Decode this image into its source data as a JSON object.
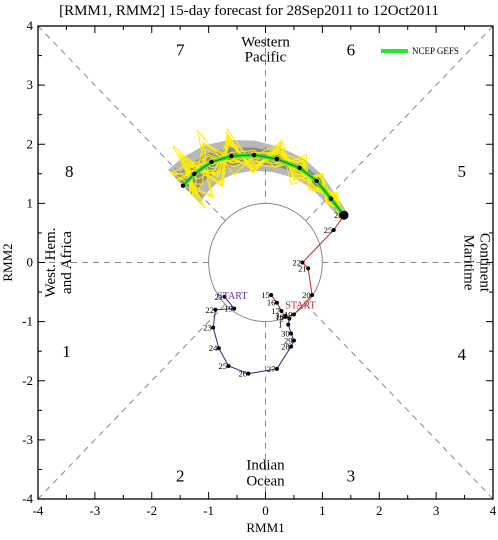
{
  "chart_data": {
    "type": "line",
    "title": "[RMM1, RMM2] 15-day forecast for 28Sep2011 to 12Oct2011",
    "xlabel": "RMM1",
    "ylabel": "RMM2",
    "xlim": [
      -4,
      4
    ],
    "ylim": [
      -4,
      4
    ],
    "xticks": [
      -4,
      -3,
      -2,
      -1,
      0,
      1,
      2,
      3,
      4
    ],
    "yticks": [
      -4,
      -3,
      -2,
      -1,
      0,
      1,
      2,
      3,
      4
    ],
    "phases": [
      {
        "label": "1",
        "x": -3.5,
        "y": -1.5
      },
      {
        "label": "2",
        "x": -1.5,
        "y": -3.6
      },
      {
        "label": "3",
        "x": 1.5,
        "y": -3.6
      },
      {
        "label": "4",
        "x": 3.45,
        "y": -1.55
      },
      {
        "label": "5",
        "x": 3.45,
        "y": 1.55
      },
      {
        "label": "6",
        "x": 1.5,
        "y": 3.6
      },
      {
        "label": "7",
        "x": -1.5,
        "y": 3.6
      },
      {
        "label": "8",
        "x": -3.45,
        "y": 1.55
      }
    ],
    "regions": {
      "top": [
        "Western",
        "Pacific"
      ],
      "bottom": [
        "Indian",
        "Ocean"
      ],
      "left": [
        "West. Hem.",
        "and Africa"
      ],
      "right": [
        "Maritime",
        "Continent"
      ]
    },
    "legend": {
      "label": "NCEP GEFS",
      "color": "#22ee22"
    },
    "start_labels": [
      {
        "text": "START",
        "color": "#663399",
        "x": -0.85,
        "y": -0.62
      },
      {
        "text": "START",
        "color": "#cc2222",
        "x": 0.35,
        "y": -0.78
      }
    ],
    "observed_purple": {
      "color": "#3a1f7a",
      "points": [
        {
          "day": "21",
          "x": -0.72,
          "y": -0.58
        },
        {
          "day": "19",
          "x": -0.55,
          "y": -0.78
        },
        {
          "day": "22",
          "x": -0.88,
          "y": -0.8
        },
        {
          "day": "23",
          "x": -0.92,
          "y": -1.1
        },
        {
          "day": "24",
          "x": -0.82,
          "y": -1.45
        },
        {
          "day": "25",
          "x": -0.65,
          "y": -1.75
        },
        {
          "day": "26",
          "x": -0.3,
          "y": -1.88
        },
        {
          "day": "27",
          "x": 0.2,
          "y": -1.8
        },
        {
          "day": "28",
          "x": 0.45,
          "y": -1.42
        },
        {
          "day": "29",
          "x": 0.5,
          "y": -1.32
        },
        {
          "day": "30",
          "x": 0.45,
          "y": -1.2
        },
        {
          "day": "1",
          "x": 0.4,
          "y": -1.05
        },
        {
          "day": "2",
          "x": 0.42,
          "y": -0.95
        },
        {
          "day": "3",
          "x": 0.35,
          "y": -0.9
        }
      ]
    },
    "observed_red": {
      "color": "#cc2222",
      "points": [
        {
          "day": "15",
          "x": 0.1,
          "y": -0.55
        },
        {
          "day": "16",
          "x": 0.2,
          "y": -0.68
        },
        {
          "day": "17",
          "x": 0.28,
          "y": -0.82
        },
        {
          "day": "18",
          "x": 0.35,
          "y": -0.92
        },
        {
          "day": "19",
          "x": 0.5,
          "y": -0.88
        },
        {
          "day": "20",
          "x": 0.82,
          "y": -0.55
        },
        {
          "day": "21",
          "x": 0.75,
          "y": -0.1
        },
        {
          "day": "22",
          "x": 0.65,
          "y": 0.0
        },
        {
          "day": "25",
          "x": 1.2,
          "y": 0.55
        },
        {
          "day": "28",
          "x": 1.38,
          "y": 0.8
        }
      ]
    },
    "forecast_mean": {
      "color": "#22ee22",
      "points": [
        {
          "x": 1.38,
          "y": 0.8
        },
        {
          "x": 1.15,
          "y": 1.08
        },
        {
          "x": 0.9,
          "y": 1.38
        },
        {
          "x": 0.6,
          "y": 1.6
        },
        {
          "x": 0.2,
          "y": 1.75
        },
        {
          "x": -0.2,
          "y": 1.82
        },
        {
          "x": -0.6,
          "y": 1.8
        },
        {
          "x": -0.95,
          "y": 1.7
        },
        {
          "x": -1.25,
          "y": 1.5
        },
        {
          "x": -1.45,
          "y": 1.3
        }
      ]
    }
  }
}
